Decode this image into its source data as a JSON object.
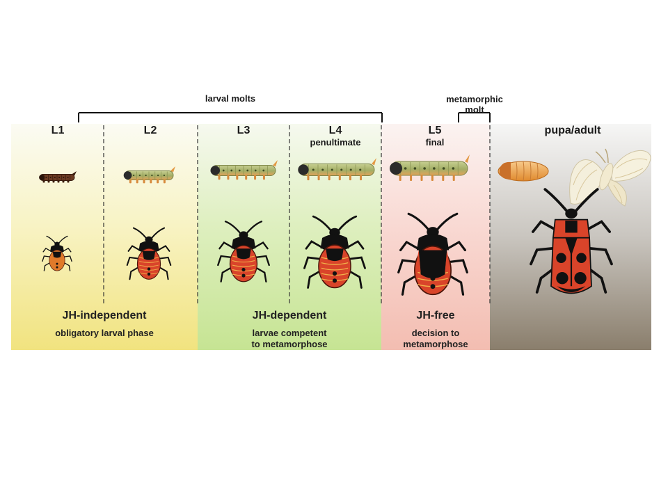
{
  "brackets": {
    "larval_molts": "larval molts",
    "metamorphic_molt_line1": "metamorphic",
    "metamorphic_molt_line2": "molt"
  },
  "stages": [
    {
      "id": "L1",
      "label": "L1",
      "sub": ""
    },
    {
      "id": "L2",
      "label": "L2",
      "sub": ""
    },
    {
      "id": "L3",
      "label": "L3",
      "sub": ""
    },
    {
      "id": "L4",
      "label": "L4",
      "sub": "penultimate"
    },
    {
      "id": "L5",
      "label": "L5",
      "sub": "final"
    },
    {
      "id": "pupa-adult",
      "label": "pupa/adult",
      "sub": ""
    }
  ],
  "phases": {
    "yellow": {
      "title": "JH-independent",
      "line1": "obligatory larval phase",
      "line2": ""
    },
    "green": {
      "title": "JH-dependent",
      "line1": "larvae competent",
      "line2": "to metamorphose"
    },
    "pink": {
      "title": "JH-free",
      "line1": "decision to",
      "line2": "metamorphose"
    }
  },
  "colors": {
    "yellow_phase": "#f1e37f",
    "green_phase": "#c6e493",
    "pink_phase": "#f3bdb1",
    "gray_phase": "#8a7e6c",
    "bug_red": "#d9442a",
    "bug_black": "#111111",
    "caterpillar": "#a9b46e"
  },
  "icons": [
    "caterpillar-icon",
    "bug-nymph-icon",
    "pupa-icon",
    "moth-icon",
    "adult-bug-icon"
  ]
}
